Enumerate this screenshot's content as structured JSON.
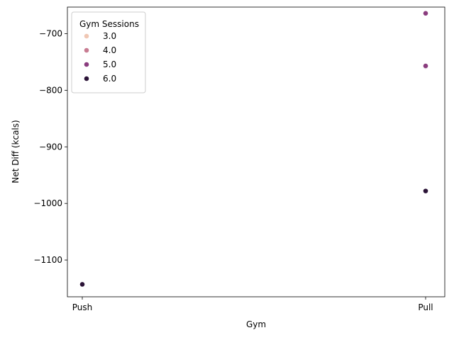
{
  "chart_data": {
    "type": "scatter",
    "xlabel": "Gym",
    "ylabel": "Net Diff (kcals)",
    "categories": [
      "Push",
      "Pull"
    ],
    "ylim": [
      -1165,
      -653
    ],
    "yticks": [
      -1100,
      -1000,
      -900,
      -800,
      -700
    ],
    "ytick_labels": [
      "−1100",
      "−1000",
      "−900",
      "−800",
      "−700"
    ],
    "grid": false,
    "legend": {
      "title": "Gym Sessions",
      "placement": "top-left",
      "entries": [
        {
          "label": "3.0",
          "color": "#f0c7b4"
        },
        {
          "label": "4.0",
          "color": "#c87c92"
        },
        {
          "label": "5.0",
          "color": "#8a3c7e"
        },
        {
          "label": "6.0",
          "color": "#2b1337"
        }
      ]
    },
    "points": [
      {
        "x": "Push",
        "y": -1143,
        "sessions": "6.0",
        "color": "#2b1337"
      },
      {
        "x": "Pull",
        "y": -978,
        "sessions": "6.0",
        "color": "#2b1337"
      },
      {
        "x": "Pull",
        "y": -758,
        "sessions": "6.0",
        "color": "#2b1337"
      },
      {
        "x": "Pull",
        "y": -757,
        "sessions": "3.0",
        "color": "#f0c7b4"
      },
      {
        "x": "Pull",
        "y": -757,
        "sessions": "5.0",
        "color": "#8a3c7e"
      },
      {
        "x": "Pull",
        "y": -664,
        "sessions": "5.0",
        "color": "#8a3c7e"
      }
    ]
  }
}
